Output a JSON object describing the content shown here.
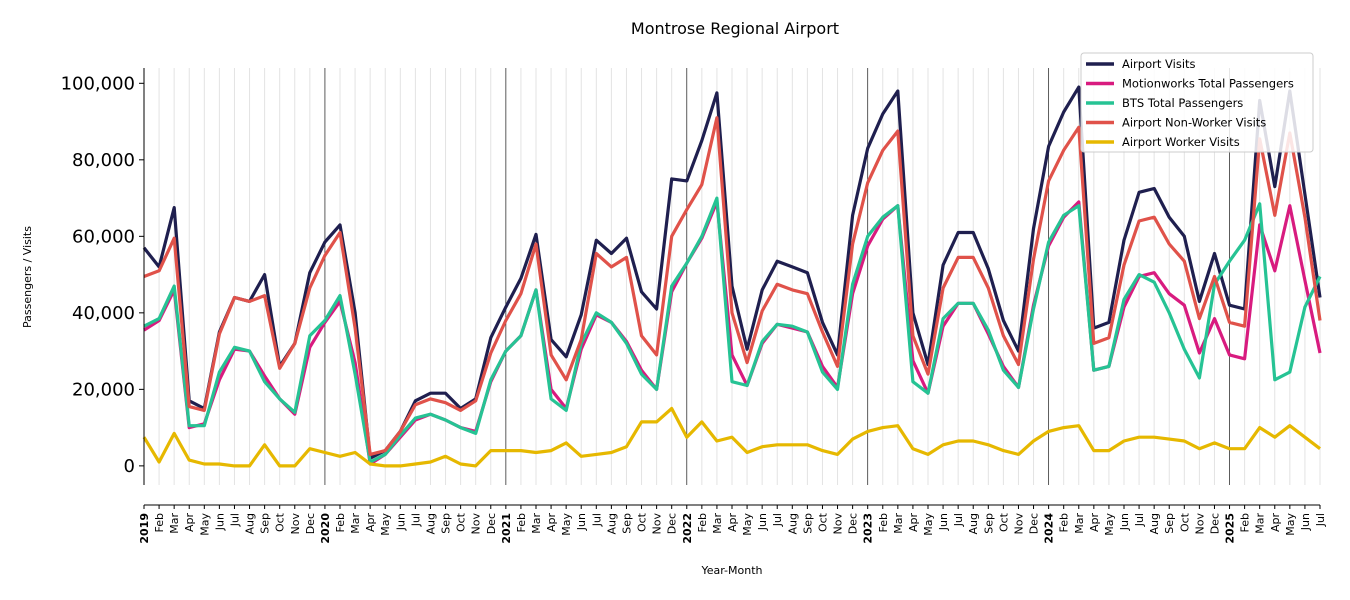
{
  "chart_data": {
    "type": "line",
    "title": "Montrose Regional Airport",
    "xlabel": "Year-Month",
    "ylabel": "Passengers / Visits",
    "ylim": [
      -5000,
      104000
    ],
    "yticks": [
      0,
      20000,
      40000,
      60000,
      80000,
      100000
    ],
    "ytick_labels": [
      "0",
      "20,000",
      "40,000",
      "60,000",
      "80,000",
      "100,000"
    ],
    "grid": "vertical monthly gridlines, darker line at each January",
    "legend_position": "top-right",
    "x": [
      "2019",
      "Feb",
      "Mar",
      "Apr",
      "May",
      "Jun",
      "Jul",
      "Aug",
      "Sep",
      "Oct",
      "Nov",
      "Dec",
      "2020",
      "Feb",
      "Mar",
      "Apr",
      "May",
      "Jun",
      "Jul",
      "Aug",
      "Sep",
      "Oct",
      "Nov",
      "Dec",
      "2021",
      "Feb",
      "Mar",
      "Apr",
      "May",
      "Jun",
      "Jul",
      "Aug",
      "Sep",
      "Oct",
      "Nov",
      "Dec",
      "2022",
      "Feb",
      "Mar",
      "Apr",
      "May",
      "Jun",
      "Jul",
      "Aug",
      "Sep",
      "Oct",
      "Nov",
      "Dec",
      "2023",
      "Feb",
      "Mar",
      "Apr",
      "May",
      "Jun",
      "Jul",
      "Aug",
      "Sep",
      "Oct",
      "Nov",
      "Dec",
      "2024",
      "Feb",
      "Mar",
      "Apr",
      "May",
      "Jun",
      "Jul",
      "Aug",
      "Sep",
      "Oct",
      "Nov",
      "Dec",
      "2025",
      "Feb",
      "Mar",
      "Apr",
      "May",
      "Jun",
      "Jul"
    ],
    "series": [
      {
        "name": "Airport Visits",
        "color": "#1f1f4f",
        "values": [
          57000,
          52000,
          67500,
          17000,
          15000,
          35000,
          44000,
          43000,
          50000,
          26000,
          32000,
          50500,
          58500,
          63000,
          40000,
          2000,
          4000,
          9000,
          17000,
          19000,
          19000,
          15000,
          17500,
          33500,
          41500,
          49000,
          60500,
          33000,
          28500,
          39500,
          59000,
          55500,
          59500,
          45500,
          41000,
          75000,
          74500,
          85000,
          97500,
          47000,
          30500,
          46000,
          53500,
          52000,
          50500,
          37500,
          29000,
          65500,
          83000,
          92000,
          98000,
          40000,
          26500,
          52500,
          61000,
          61000,
          51500,
          38000,
          30000,
          62000,
          83500,
          92500,
          99000,
          36000,
          37500,
          59000,
          71500,
          72500,
          65000,
          60000,
          43000,
          55500,
          42000,
          41000,
          95500,
          73000,
          98000,
          71000,
          44000
        ]
      },
      {
        "name": "Motionworks Total Passengers",
        "color": "#d81b7f",
        "values": [
          35500,
          38000,
          46000,
          10000,
          11000,
          22500,
          30500,
          30000,
          23500,
          17500,
          13500,
          31000,
          37500,
          43000,
          27000,
          500,
          3000,
          7500,
          12000,
          13500,
          12000,
          10000,
          9000,
          22000,
          30000,
          34000,
          46000,
          20000,
          15000,
          30500,
          39500,
          37500,
          32500,
          25000,
          20000,
          45500,
          53000,
          59500,
          69000,
          29000,
          21000,
          32000,
          37000,
          36000,
          35000,
          26000,
          20500,
          45000,
          57500,
          64500,
          68000,
          27500,
          19000,
          36500,
          42500,
          42500,
          34500,
          26000,
          20500,
          42000,
          57500,
          65000,
          69000,
          25000,
          26000,
          41500,
          49500,
          50500,
          45000,
          42000,
          29500,
          38500,
          29000,
          28000,
          63000,
          51000,
          68000,
          48500,
          29500
        ]
      },
      {
        "name": "BTS Total Passengers",
        "color": "#26c394",
        "values": [
          36500,
          38500,
          47000,
          10500,
          10500,
          24500,
          31000,
          30000,
          22000,
          17500,
          14000,
          34000,
          38000,
          44500,
          24000,
          1000,
          3000,
          8000,
          12500,
          13500,
          12000,
          10000,
          8500,
          22500,
          30000,
          34000,
          46000,
          17500,
          14500,
          32000,
          40000,
          37500,
          32000,
          24000,
          20000,
          47000,
          53000,
          60000,
          70000,
          22000,
          21000,
          32500,
          37000,
          36500,
          35000,
          24500,
          20000,
          47500,
          60000,
          65000,
          68000,
          22000,
          19000,
          38500,
          42500,
          42500,
          35500,
          25000,
          20500,
          41000,
          58500,
          65500,
          68000,
          25000,
          26000,
          43500,
          50000,
          48000,
          40000,
          30500,
          23000,
          47500,
          53500,
          59000,
          68500,
          22500,
          24500,
          41500,
          49500
        ]
      },
      {
        "name": "Airport Non-Worker Visits",
        "color": "#e0524a",
        "values": [
          49500,
          51000,
          59500,
          15500,
          14500,
          34500,
          44000,
          43000,
          44500,
          25500,
          32000,
          46500,
          55000,
          61000,
          36000,
          3000,
          4000,
          9000,
          16000,
          17500,
          16500,
          14500,
          17000,
          29500,
          38000,
          45000,
          58000,
          29000,
          22500,
          33000,
          55500,
          52000,
          54500,
          34000,
          29000,
          60000,
          67000,
          73500,
          91000,
          40000,
          27000,
          40500,
          47500,
          46000,
          45000,
          35000,
          26000,
          58000,
          74000,
          82500,
          87500,
          34000,
          24000,
          46500,
          54500,
          54500,
          46500,
          34000,
          26500,
          54000,
          74500,
          82500,
          88500,
          32000,
          33500,
          52500,
          64000,
          65000,
          58000,
          53500,
          38500,
          49500,
          37500,
          36500,
          85500,
          65500,
          87000,
          65000,
          38000
        ]
      },
      {
        "name": "Airport Worker Visits",
        "color": "#e6b800",
        "values": [
          7500,
          1000,
          8500,
          1500,
          500,
          500,
          0,
          0,
          5500,
          0,
          0,
          4500,
          3500,
          2500,
          3500,
          500,
          0,
          0,
          500,
          1000,
          2500,
          500,
          0,
          4000,
          4000,
          4000,
          3500,
          4000,
          6000,
          2500,
          3000,
          3500,
          5000,
          11500,
          11500,
          15000,
          7500,
          11500,
          6500,
          7500,
          3500,
          5000,
          5500,
          5500,
          5500,
          4000,
          3000,
          7000,
          9000,
          10000,
          10500,
          4500,
          3000,
          5500,
          6500,
          6500,
          5500,
          4000,
          3000,
          6500,
          9000,
          10000,
          10500,
          4000,
          4000,
          6500,
          7500,
          7500,
          7000,
          6500,
          4500,
          6000,
          4500,
          4500,
          10000,
          7500,
          10500,
          7500,
          4500
        ]
      }
    ]
  }
}
